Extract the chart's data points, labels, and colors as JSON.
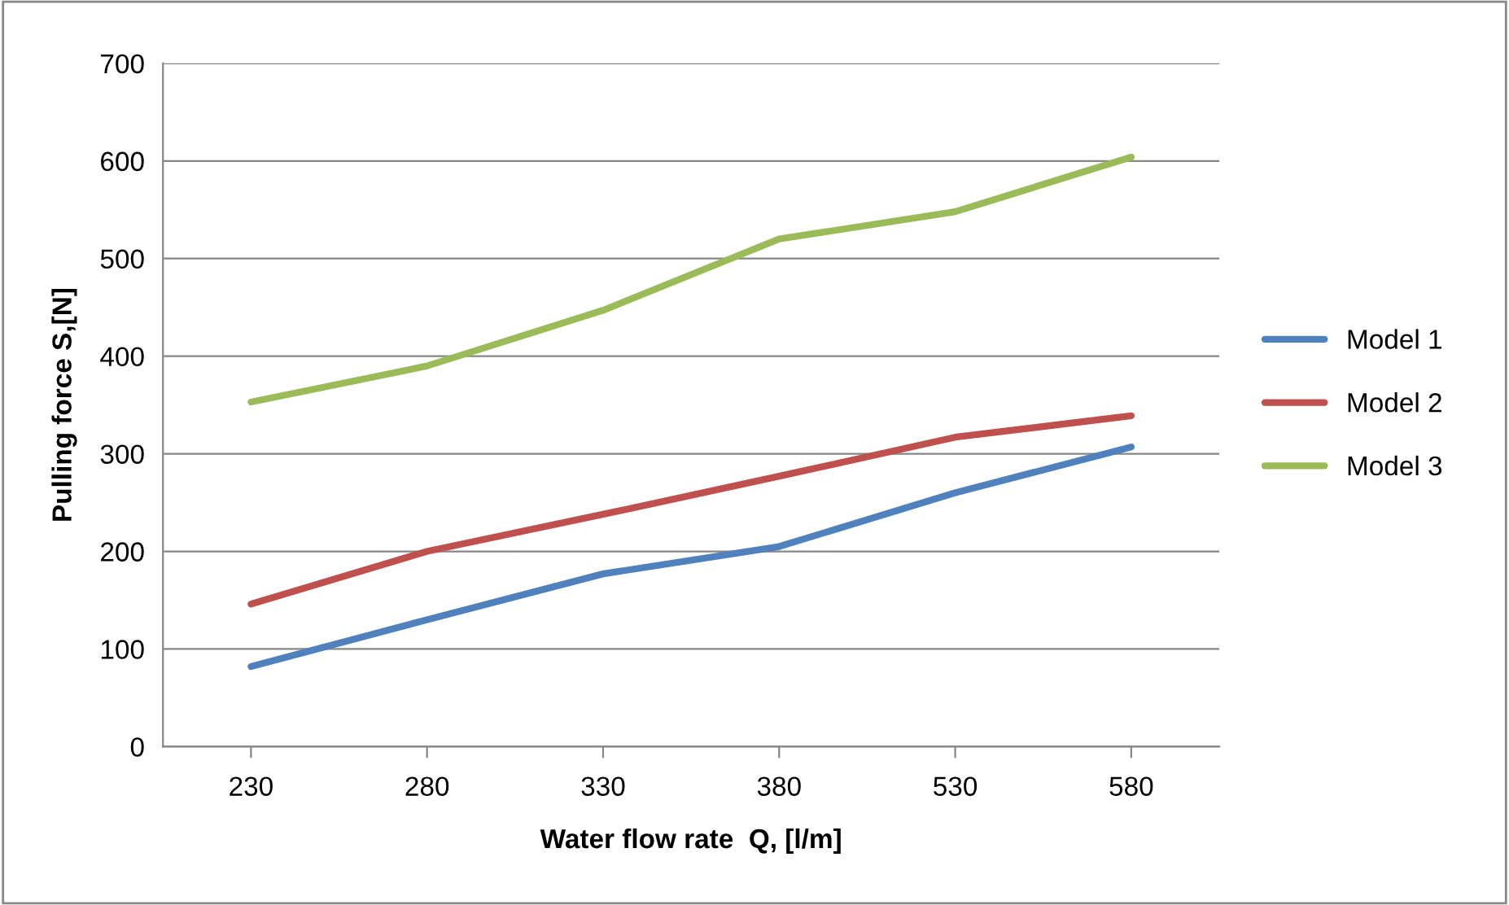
{
  "chart_data": {
    "type": "line",
    "xlabel": "Water flow rate  Q, [l/m]",
    "ylabel": "Pulling force S,[N]",
    "categories": [
      "230",
      "280",
      "330",
      "380",
      "530",
      "580"
    ],
    "series": [
      {
        "name": "Model 1",
        "color": "#4f81bd",
        "values": [
          82,
          130,
          177,
          205,
          260,
          307
        ]
      },
      {
        "name": "Model 2",
        "color": "#c0504d",
        "values": [
          146,
          200,
          238,
          277,
          317,
          339
        ]
      },
      {
        "name": "Model 3",
        "color": "#9bbb59",
        "values": [
          353,
          390,
          447,
          520,
          548,
          604
        ]
      }
    ],
    "ylim": [
      0,
      700
    ],
    "yticks": [
      0,
      100,
      200,
      300,
      400,
      500,
      600,
      700
    ],
    "grid": "y",
    "legend": "right",
    "marker": "none",
    "line_style": "solid"
  }
}
